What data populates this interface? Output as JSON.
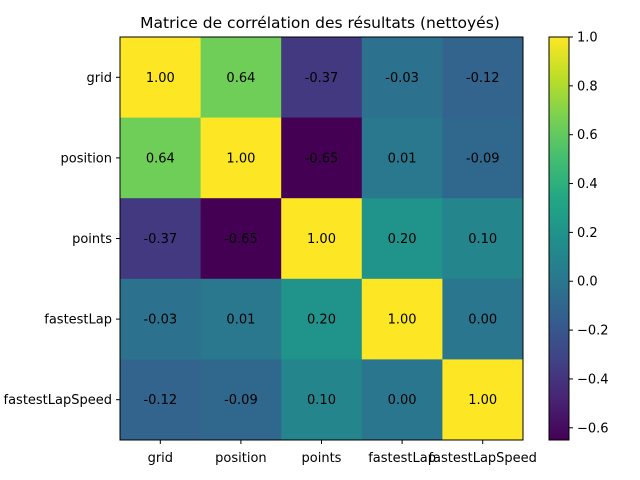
{
  "chart_data": {
    "type": "heatmap",
    "title": "Matrice de corrélation des résultats (nettoyés)",
    "x_labels": [
      "grid",
      "position",
      "points",
      "fastestLap",
      "fastestLapSpeed"
    ],
    "y_labels": [
      "grid",
      "position",
      "points",
      "fastestLap",
      "fastestLapSpeed"
    ],
    "values": [
      [
        1.0,
        0.64,
        -0.37,
        -0.03,
        -0.12
      ],
      [
        0.64,
        1.0,
        -0.65,
        0.01,
        -0.09
      ],
      [
        -0.37,
        -0.65,
        1.0,
        0.2,
        0.1
      ],
      [
        -0.03,
        0.01,
        0.2,
        1.0,
        0.0
      ],
      [
        -0.12,
        -0.09,
        0.1,
        0.0,
        1.0
      ]
    ],
    "cell_labels": [
      [
        "1.00",
        "0.64",
        "-0.37",
        "-0.03",
        "-0.12"
      ],
      [
        "0.64",
        "1.00",
        "-0.65",
        "0.01",
        "-0.09"
      ],
      [
        "-0.37",
        "-0.65",
        "1.00",
        "0.20",
        "0.10"
      ],
      [
        "-0.03",
        "0.01",
        "0.20",
        "1.00",
        "0.00"
      ],
      [
        "-0.12",
        "-0.09",
        "0.10",
        "0.00",
        "1.00"
      ]
    ],
    "colormap": "viridis",
    "colorbar": {
      "vmin": -0.65,
      "vmax": 1.0,
      "ticks": [
        "1.0",
        "0.8",
        "0.6",
        "0.4",
        "0.2",
        "0.0",
        "−0.2",
        "−0.4",
        "−0.6"
      ],
      "tick_values": [
        1.0,
        0.8,
        0.6,
        0.4,
        0.2,
        0.0,
        -0.2,
        -0.4,
        -0.6
      ]
    }
  }
}
